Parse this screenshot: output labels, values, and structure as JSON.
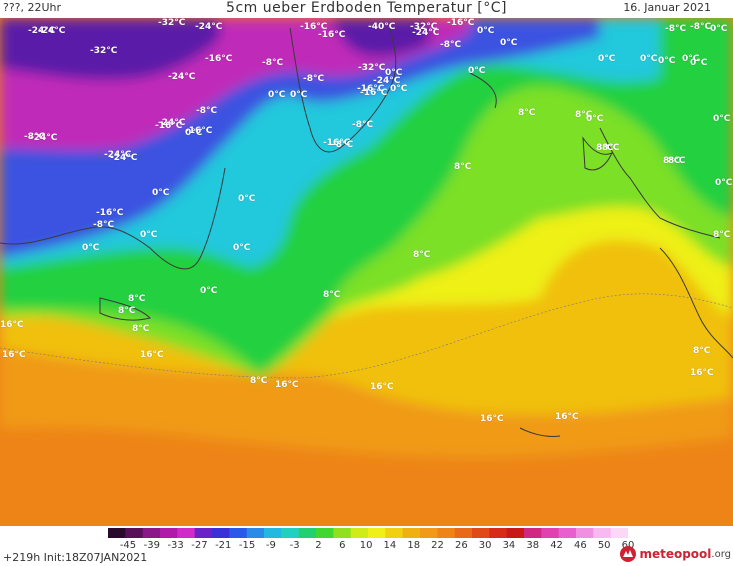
{
  "header": {
    "left_text": "???, 22Uhr",
    "title": "5cm ueber Erdboden Temperatur [°C]",
    "date": "16. Januar 2021"
  },
  "footer": {
    "run_info": "+219h  Init:18Z07JAN2021",
    "brand_name": "meteopool",
    "brand_tld": ".org"
  },
  "legend": {
    "ticks": [
      "-45",
      "-39",
      "-33",
      "-27",
      "-21",
      "-15",
      "-9",
      "-3",
      "2",
      "6",
      "10",
      "14",
      "18",
      "22",
      "26",
      "30",
      "34",
      "38",
      "42",
      "46",
      "50",
      "60"
    ]
  },
  "colors": {
    "deep_purple": "#5a1ea8",
    "magenta": "#c02ab8",
    "blue": "#3a52e0",
    "cyan": "#22c8dc",
    "green": "#22d040",
    "lime": "#7ce028",
    "yellow": "#eef018",
    "gold": "#f0c010",
    "orange": "#f09a18",
    "dark_orange": "#ee8418",
    "coastline": "#3a3a3a",
    "land_border": "#777777"
  },
  "map_labels": [
    "-24°C",
    "-32°C",
    "-24°C",
    "-24°C",
    "-16°C",
    "-40°C",
    "-32°C",
    "-24°C",
    "-16°C",
    "-16°C",
    "-8°C",
    "-32°C",
    "-16°C",
    "-8°C",
    "-24°C",
    "0°C",
    "-8°C",
    "0°C",
    "0°C",
    "-8°C",
    "0°C",
    "-8°C",
    "-24°C",
    "-24°C",
    "-16°C",
    "0°C",
    "0°C",
    "-16°C",
    "0°C",
    "-32°C",
    "-24°C",
    "-16°C",
    "-8°C",
    "8°C",
    "0°C",
    "-16°C",
    "0°C",
    "-24°C",
    "-24°C",
    "-16°C",
    "0°C",
    "-8°C",
    "0°C",
    "-8°C",
    "0°C",
    "8°C",
    "8°C",
    "0°C",
    "8°C",
    "0°C",
    "0°C",
    "8°C",
    "0°C",
    "0°C",
    "-16°C",
    "-8°C",
    "0°C",
    "0°C",
    "8°C",
    "8°C",
    "8°C",
    "0°C",
    "0°C",
    "0°C",
    "-8°C",
    "8°C",
    "8°C",
    "8°C",
    "8°C",
    "8°C",
    "16°C",
    "16°C",
    "8°C",
    "16°C",
    "16°C",
    "16°C",
    "16°C",
    "16°C",
    "8°C",
    "16°C",
    "0°C"
  ]
}
